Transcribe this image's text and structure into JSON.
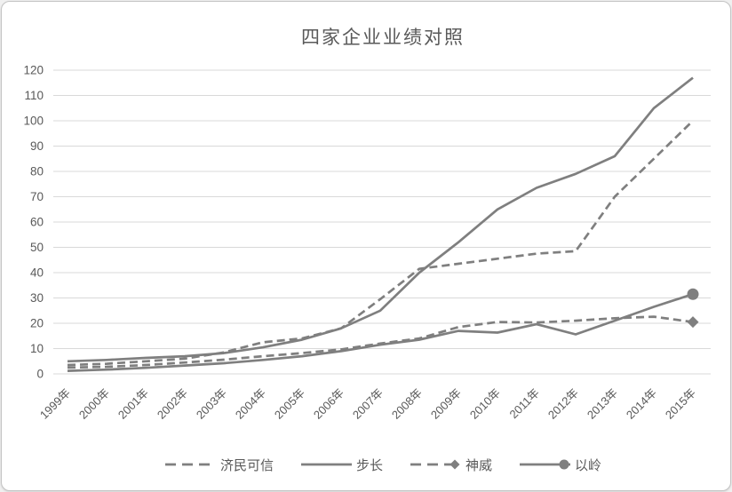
{
  "chart_data": {
    "type": "line",
    "title": "四家企业业绩对照",
    "xlabel": "",
    "ylabel": "",
    "ylim": [
      0,
      120
    ],
    "ytick_step": 10,
    "grid": "horizontal",
    "legend_position": "bottom",
    "categories": [
      "1999年",
      "2000年",
      "2001年",
      "2002年",
      "2003年",
      "2004年",
      "2005年",
      "2006年",
      "2007年",
      "2008年",
      "2009年",
      "2010年",
      "2011年",
      "2012年",
      "2013年",
      "2014年",
      "2015年"
    ],
    "series": [
      {
        "id": "jimin-kexin",
        "name": "济民可信",
        "line_style": "dashed",
        "end_marker": "none",
        "values": [
          3.5,
          4,
          5,
          6,
          8.5,
          12.5,
          14,
          18,
          29.5,
          41.5,
          43.5,
          45.5,
          47.5,
          48.5,
          70,
          85,
          100
        ]
      },
      {
        "id": "buchang",
        "name": "步长",
        "line_style": "solid",
        "end_marker": "none",
        "values": [
          5,
          5.5,
          6.3,
          7,
          8.2,
          10.5,
          13.5,
          18,
          25,
          40,
          52,
          65,
          73.5,
          79,
          86,
          105,
          117
        ]
      },
      {
        "id": "shenwei",
        "name": "神威",
        "line_style": "dashed",
        "end_marker": "diamond",
        "values": [
          2.5,
          2.8,
          3.5,
          4.5,
          5.6,
          7,
          8.2,
          9.7,
          12,
          14,
          18.5,
          20.5,
          20.3,
          21,
          22,
          22.6,
          20.5
        ]
      },
      {
        "id": "yiling",
        "name": "以岭",
        "line_style": "solid",
        "end_marker": "circle",
        "values": [
          1.2,
          1.7,
          2.4,
          3.3,
          4.2,
          5.5,
          7,
          9,
          11.5,
          13.5,
          17,
          16.3,
          19.6,
          15.6,
          21,
          26.5,
          31.5
        ]
      }
    ],
    "colors": {
      "line": "#7f7f7f",
      "grid": "#d9d9d9",
      "text": "#595959",
      "border": "#c4c4c4",
      "background": "#ffffff"
    }
  }
}
